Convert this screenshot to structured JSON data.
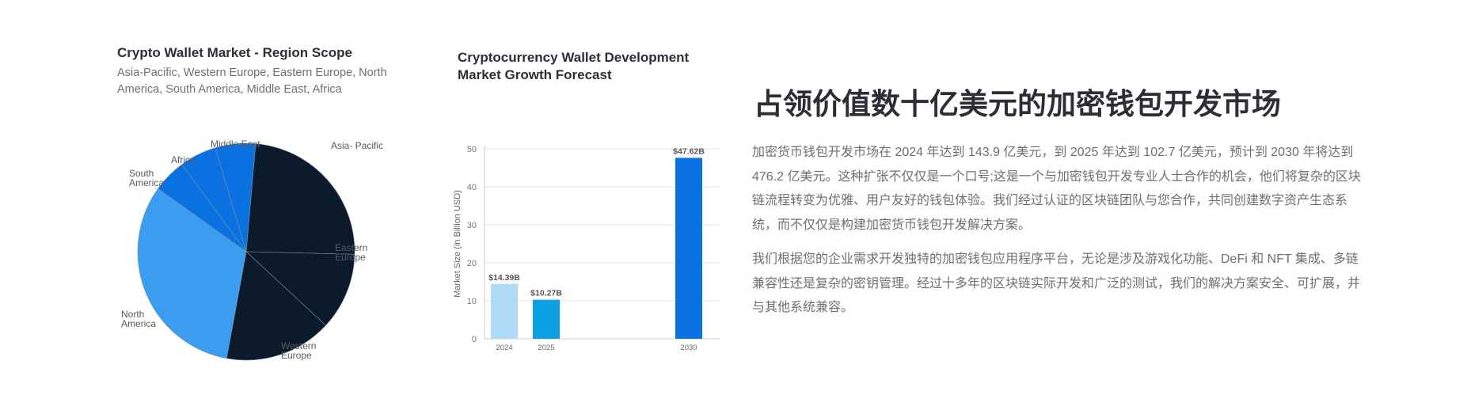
{
  "pie": {
    "title": "Crypto Wallet Market - Region Scope",
    "subtitle": "Asia-Pacific, Western Europe, Eastern Europe, North America, South America, Middle East, Africa"
  },
  "bar": {
    "title_line1": "Cryptocurrency Wallet Development",
    "title_line2": "Market Growth Forecast"
  },
  "article": {
    "heading": "占领价值数十亿美元的加密钱包开发市场",
    "paragraph1": "加密货币钱包开发市场在 2024 年达到 143.9 亿美元，到 2025 年达到 102.7 亿美元，预计到 2030 年将达到 476.2 亿美元。这种扩张不仅仅是一个口号;这是一个与加密钱包开发专业人士合作的机会，他们将复杂的区块链流程转变为优雅、用户友好的钱包体验。我们经过认证的区块链团队与您合作，共同创建数字资产生态系统，而不仅仅是构建加密货币钱包开发解决方案。",
    "paragraph2": "我们根据您的企业需求开发独特的加密钱包应用程序平台，无论是涉及游戏化功能、DeFi 和 NFT 集成、多链兼容性还是复杂的密钥管理。经过十多年的区块链实际开发和广泛的测试，我们的解决方案安全、可扩展，并与其他系统兼容。"
  },
  "chart_data": [
    {
      "type": "pie",
      "title": "Crypto Wallet Market - Region Scope",
      "subtitle": "Asia-Pacific, Western Europe, Eastern Europe, North America, South America, Middle East, Africa",
      "start_angle_deg": 5,
      "slices": [
        {
          "label": "Asia- Pacific",
          "value": 24,
          "color": "#0b1b2b"
        },
        {
          "label": "Eastern Europe",
          "value": 11.5,
          "color": "#0b1b2b"
        },
        {
          "label": "Western Europe",
          "value": 16,
          "color": "#0b1b2b"
        },
        {
          "label": "North America",
          "value": 32,
          "color": "#3a9df0"
        },
        {
          "label": "South America",
          "value": 5,
          "color": "#0a72e0"
        },
        {
          "label": "Africa",
          "value": 5.5,
          "color": "#0a72e0"
        },
        {
          "label": "Middle East",
          "value": 6,
          "color": "#0a72e0"
        }
      ]
    },
    {
      "type": "bar",
      "title": "Cryptocurrency Wallet Development Market Growth Forecast",
      "ylabel": "Market Size (in Billion USD)",
      "xlabel": "",
      "ylim": [
        0,
        50
      ],
      "yticks": [
        0,
        10,
        20,
        30,
        40,
        50
      ],
      "categories": [
        "2024",
        "2025",
        "2030"
      ],
      "values": [
        14.39,
        10.27,
        47.62
      ],
      "data_labels": [
        "$14.39B",
        "$10.27B",
        "$47.62B"
      ],
      "colors": [
        "#aedaf7",
        "#0aa0e3",
        "#0a72e0"
      ],
      "grid": true
    }
  ]
}
